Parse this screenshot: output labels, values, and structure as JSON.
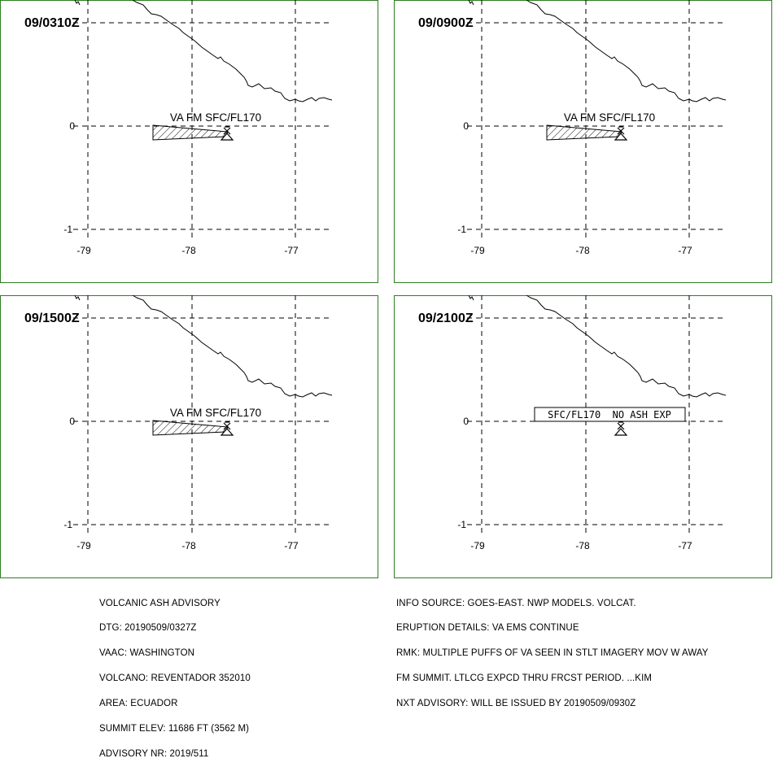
{
  "panels": [
    {
      "time": "09/0310Z",
      "label": "VA FM SFC/FL170",
      "ash": true
    },
    {
      "time": "09/0900Z",
      "label": "VA FM SFC/FL170",
      "ash": true
    },
    {
      "time": "09/1500Z",
      "label": "VA FM SFC/FL170",
      "ash": true
    },
    {
      "time": "09/2100Z",
      "label": "SFC/FL170  NO ASH EXP",
      "ash": false
    }
  ],
  "axes": {
    "lon_ticks": [
      "-79",
      "-78",
      "-77"
    ],
    "lat_ticks": [
      "0",
      "-1"
    ]
  },
  "colors": {
    "frame": "#2e7d22",
    "ink": "#000000"
  },
  "icons": {
    "volcano": "volcano-triangle-icon"
  },
  "advisory_left": [
    "VOLCANIC ASH ADVISORY",
    "DTG: 20190509/0327Z",
    "VAAC: WASHINGTON",
    "VOLCANO: REVENTADOR 352010",
    "AREA: ECUADOR",
    "SUMMIT ELEV: 11686 FT (3562 M)",
    "ADVISORY NR: 2019/511"
  ],
  "advisory_right": [
    "INFO SOURCE: GOES-EAST. NWP MODELS. VOLCAT.",
    "ERUPTION DETAILS: VA EMS CONTINUE",
    "RMK: MULTIPLE PUFFS OF VA SEEN IN STLT IMAGERY MOV W AWAY",
    "FM SUMMIT. LTLCG EXPCD THRU FRCST PERIOD. ...KIM",
    "NXT ADVISORY: WILL BE ISSUED BY 20190509/0930Z"
  ]
}
